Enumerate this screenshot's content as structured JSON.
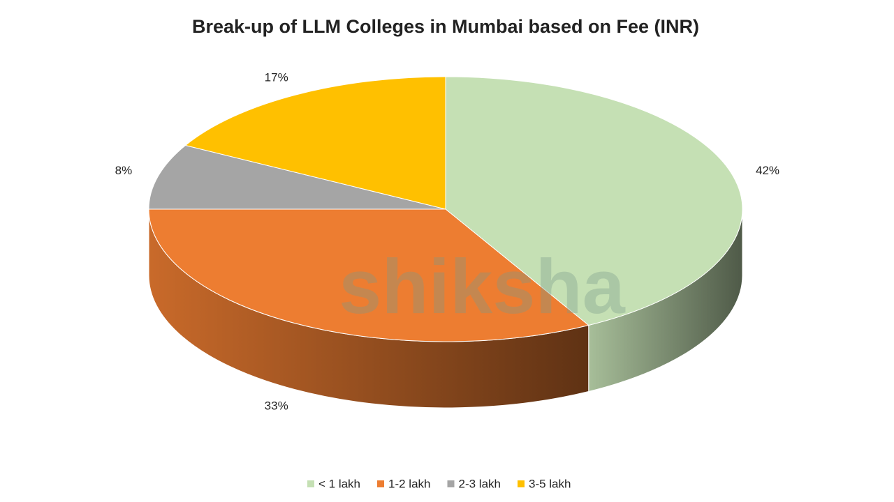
{
  "chart_data": {
    "type": "pie",
    "title": "Break-up of LLM Colleges in Mumbai based on Fee (INR)",
    "categories": [
      "< 1 lakh",
      "1-2 lakh",
      "2-3 lakh",
      "3-5 lakh"
    ],
    "values": [
      42,
      33,
      8,
      17
    ],
    "value_labels": [
      "42%",
      "33%",
      "8%",
      "17%"
    ],
    "colors": [
      "#c5e0b4",
      "#ed7d31",
      "#a5a5a5",
      "#ffc000"
    ],
    "legend": "bottom",
    "watermark": "shiksha"
  }
}
